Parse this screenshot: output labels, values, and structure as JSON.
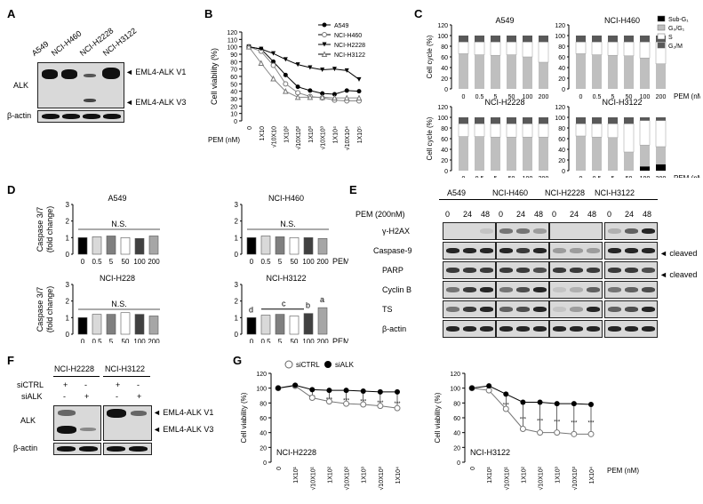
{
  "panels": {
    "A": "A",
    "B": "B",
    "C": "C",
    "D": "D",
    "E": "E",
    "F": "F",
    "G": "G"
  },
  "panelA": {
    "lanes": [
      "A549",
      "NCI-H460",
      "NCI-H2228",
      "NCI-H3122"
    ],
    "row_alk": "ALK",
    "row_actin": "β-actin",
    "arrow_v1": "◄ EML4-ALK V1",
    "arrow_v3": "◄ EML4-ALK V3"
  },
  "panelB": {
    "ylabel": "Cell viability (%)",
    "xlabel": "PEM (nM)",
    "legend": [
      "A549",
      "NCI-H460",
      "NCI-H2228",
      "NCI-H3122"
    ],
    "chart_data": {
      "type": "line",
      "x": [
        "0",
        "1X10",
        "√10X10",
        "1X10²",
        "√10X10²",
        "1X10³",
        "√10X10³",
        "1X10⁴",
        "√10X10⁴",
        "1X10⁵"
      ],
      "ylim": [
        0,
        120
      ],
      "yticks": [
        0,
        10,
        20,
        30,
        40,
        50,
        60,
        70,
        80,
        90,
        100,
        110,
        120
      ],
      "series": [
        {
          "name": "A549",
          "marker": "filled-circle",
          "values": [
            100,
            97,
            80,
            62,
            46,
            41,
            37,
            36,
            41,
            40
          ]
        },
        {
          "name": "NCI-H460",
          "marker": "open-circle",
          "values": [
            100,
            94,
            75,
            50,
            38,
            33,
            31,
            28,
            27,
            27
          ]
        },
        {
          "name": "NCI-H2228",
          "marker": "filled-triangle-down",
          "values": [
            100,
            97,
            91,
            83,
            76,
            72,
            69,
            70,
            68,
            56
          ]
        },
        {
          "name": "NCI-H3122",
          "marker": "open-triangle",
          "values": [
            100,
            78,
            57,
            40,
            32,
            32,
            32,
            31,
            31,
            31
          ]
        }
      ]
    }
  },
  "panelC": {
    "ylabel": "Cell cycle (%)",
    "xlabel": "PEM (nM)",
    "xticks": [
      "0",
      "0.5",
      "5",
      "50",
      "100",
      "200"
    ],
    "yticks": [
      "0",
      "20",
      "40",
      "60",
      "80",
      "100",
      "120"
    ],
    "legend": [
      {
        "name": "Sub-G₁",
        "color": "#000000"
      },
      {
        "name": "G₀/G₁",
        "color": "#bfbfbf"
      },
      {
        "name": "S",
        "color": "#ffffff"
      },
      {
        "name": "G₂/M",
        "color": "#595959"
      }
    ],
    "charts": [
      {
        "title": "A549",
        "stacks": [
          [
            0,
            66,
            22,
            12
          ],
          [
            0,
            64,
            24,
            12
          ],
          [
            0,
            63,
            25,
            12
          ],
          [
            0,
            64,
            24,
            12
          ],
          [
            0,
            60,
            28,
            12
          ],
          [
            0,
            50,
            38,
            12
          ]
        ]
      },
      {
        "title": "NCI-H460",
        "stacks": [
          [
            0,
            66,
            22,
            12
          ],
          [
            0,
            64,
            24,
            12
          ],
          [
            0,
            63,
            25,
            12
          ],
          [
            0,
            62,
            26,
            12
          ],
          [
            0,
            58,
            30,
            12
          ],
          [
            0,
            47,
            41,
            12
          ]
        ]
      },
      {
        "title": "NCI-H2228",
        "stacks": [
          [
            0,
            64,
            24,
            12
          ],
          [
            0,
            64,
            24,
            12
          ],
          [
            0,
            63,
            25,
            12
          ],
          [
            0,
            63,
            25,
            12
          ],
          [
            0,
            63,
            25,
            12
          ],
          [
            0,
            63,
            25,
            12
          ]
        ]
      },
      {
        "title": "NCI-H3122",
        "stacks": [
          [
            0,
            65,
            23,
            12
          ],
          [
            0,
            63,
            25,
            12
          ],
          [
            0,
            62,
            26,
            12
          ],
          [
            0,
            35,
            53,
            12
          ],
          [
            8,
            40,
            46,
            6
          ],
          [
            12,
            33,
            49,
            6
          ]
        ]
      }
    ]
  },
  "panelD": {
    "ylabel_line1": "Caspase 3/7",
    "ylabel_line2": "(fold change)",
    "xlabel": "PEM (nM)",
    "xticks": [
      "0",
      "0.5",
      "5",
      "50",
      "100",
      "200"
    ],
    "yticks": [
      "0",
      "1",
      "2",
      "3"
    ],
    "ns": "N.S.",
    "charts": [
      {
        "title": "A549",
        "values": [
          1.0,
          1.05,
          1.1,
          1.0,
          0.95,
          1.1
        ]
      },
      {
        "title": "NCI-H460",
        "values": [
          1.0,
          1.1,
          1.05,
          1.0,
          1.0,
          0.95
        ]
      },
      {
        "title": "NCI-H228",
        "values": [
          1.0,
          1.2,
          1.2,
          1.3,
          1.2,
          1.1
        ]
      },
      {
        "title": "NCI-H3122",
        "values": [
          1.0,
          1.15,
          1.2,
          1.1,
          1.25,
          1.6
        ],
        "letters": {
          "d": "d",
          "c": "c",
          "b": "b",
          "a": "a"
        }
      }
    ],
    "bar_colors": [
      "#000000",
      "#d9d9d9",
      "#7f7f7f",
      "#ffffff",
      "#404040",
      "#a6a6a6"
    ]
  },
  "panelE": {
    "treatment": "PEM (200nM)",
    "groups": [
      "A549",
      "NCI-H460",
      "NCI-H2228",
      "NCI-H3122"
    ],
    "times": [
      "0",
      "24",
      "48"
    ],
    "rows": [
      "γ-H2AX",
      "Caspase-9",
      "PARP",
      "Cyclin B",
      "TS",
      "β-actin"
    ],
    "cleaved1": "◄ cleaved",
    "cleaved2": "◄ cleaved"
  },
  "panelF": {
    "groups": [
      "NCI-H2228",
      "NCI-H3122"
    ],
    "row_sictrl": "siCTRL",
    "row_sialk": "siALK",
    "signs_ctrl": [
      "+",
      "-",
      "+",
      "-"
    ],
    "signs_alk": [
      "-",
      "+",
      "-",
      "+"
    ],
    "row_alk": "ALK",
    "row_actin": "β-actin",
    "arrow_v1": "◄ EML4-ALK V1",
    "arrow_v3": "◄ EML4-ALK V3"
  },
  "panelG": {
    "ylabel": "Cell viability (%)",
    "xlabel": "PEM (nM)",
    "legend": [
      "siCTRL",
      "siALK"
    ],
    "stars": "***",
    "chart_data": [
      {
        "type": "line",
        "title": "NCI-H2228",
        "x": [
          "0",
          "1X10¹",
          "√10X10¹",
          "1X10²",
          "√10X10²",
          "1X10³",
          "√10X10³",
          "1X10⁴"
        ],
        "ylim": [
          0,
          120
        ],
        "series": [
          {
            "name": "siCTRL",
            "values": [
              100,
              103,
              87,
              82,
              79,
              78,
              76,
              73
            ]
          },
          {
            "name": "siALK",
            "values": [
              100,
              104,
              98,
              97,
              97,
              96,
              95,
              95
            ]
          }
        ]
      },
      {
        "type": "line",
        "title": "NCI-H3122",
        "x": [
          "0",
          "1X10¹",
          "√10X10¹",
          "1X10²",
          "√10X10²",
          "1X10³",
          "√10X10³",
          "1X10⁴"
        ],
        "ylim": [
          0,
          120
        ],
        "series": [
          {
            "name": "siCTRL",
            "values": [
              100,
              97,
              72,
              45,
              40,
              40,
              38,
              38
            ]
          },
          {
            "name": "siALK",
            "values": [
              100,
              103,
              92,
              81,
              81,
              79,
              79,
              78
            ]
          }
        ]
      }
    ]
  }
}
